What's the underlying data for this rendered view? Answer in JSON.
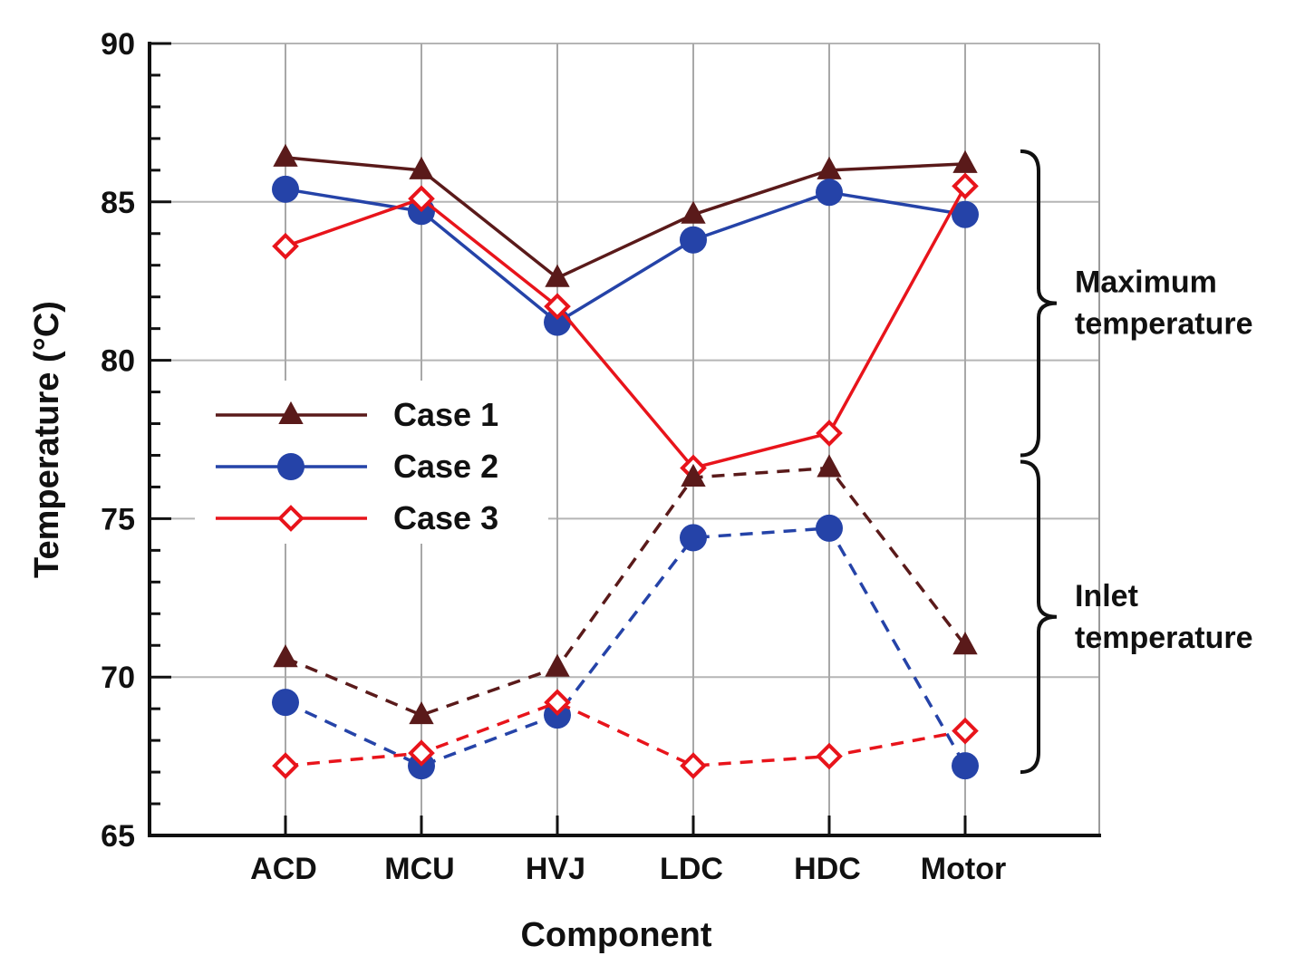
{
  "chart_data": {
    "type": "line",
    "xlabel": "Component",
    "ylabel": "Temperature (°C)",
    "ylim": [
      65,
      90
    ],
    "yticks": [
      "65",
      "70",
      "75",
      "80",
      "85",
      "90"
    ],
    "categories": [
      "ACD",
      "MCU",
      "HVJ",
      "LDC",
      "HDC",
      "Motor"
    ],
    "grid": true,
    "legend_position": "center-left",
    "series": [
      {
        "name": "Case 1",
        "group": "Maximum temperature",
        "style": "solid",
        "marker": "triangle",
        "color": "#5a1a1a",
        "values": [
          86.4,
          86.0,
          82.6,
          84.6,
          86.0,
          86.2
        ]
      },
      {
        "name": "Case 2",
        "group": "Maximum temperature",
        "style": "solid",
        "marker": "circle",
        "color": "#2543a8",
        "values": [
          85.4,
          84.7,
          81.2,
          83.8,
          85.3,
          84.6
        ]
      },
      {
        "name": "Case 3",
        "group": "Maximum temperature",
        "style": "solid",
        "marker": "diamond",
        "color": "#e8141b",
        "values": [
          83.6,
          85.1,
          81.7,
          76.6,
          77.7,
          85.5
        ]
      },
      {
        "name": "Case 1",
        "group": "Inlet temperature",
        "style": "dashed",
        "marker": "triangle",
        "color": "#5a1a1a",
        "values": [
          70.6,
          68.8,
          70.3,
          76.3,
          76.6,
          71.0
        ]
      },
      {
        "name": "Case 2",
        "group": "Inlet temperature",
        "style": "dashed",
        "marker": "circle",
        "color": "#2543a8",
        "values": [
          69.2,
          67.2,
          68.8,
          74.4,
          74.7,
          67.2
        ]
      },
      {
        "name": "Case 3",
        "group": "Inlet temperature",
        "style": "dashed",
        "marker": "diamond",
        "color": "#e8141b",
        "values": [
          67.2,
          67.6,
          69.2,
          67.2,
          67.5,
          68.3
        ]
      }
    ],
    "legend": [
      {
        "label": "Case 1",
        "marker": "triangle",
        "color": "#5a1a1a"
      },
      {
        "label": "Case 2",
        "marker": "circle",
        "color": "#2543a8"
      },
      {
        "label": "Case 3",
        "marker": "diamond",
        "color": "#e8141b"
      }
    ],
    "annotations": [
      {
        "lines": [
          "Maximum",
          "temperature"
        ],
        "y_range": [
          77,
          86.6
        ]
      },
      {
        "lines": [
          "Inlet",
          "temperature"
        ],
        "y_range": [
          67,
          76.8
        ]
      }
    ]
  }
}
